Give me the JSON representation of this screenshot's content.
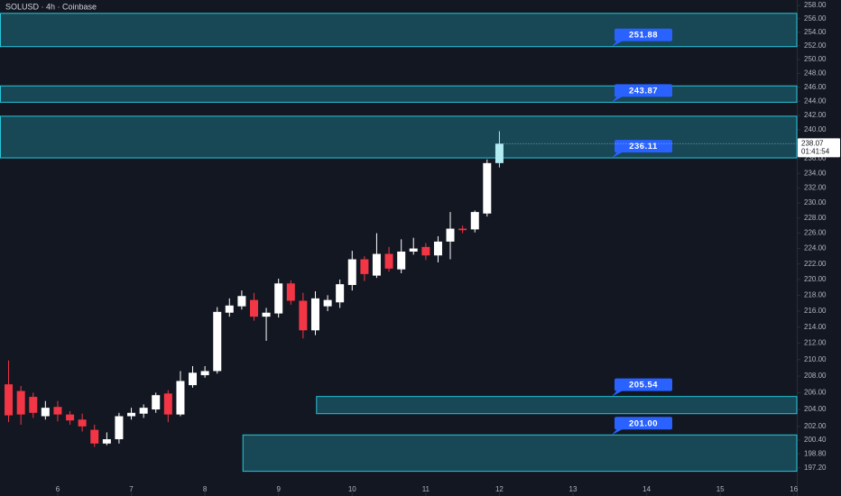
{
  "chart_data": {
    "type": "candlestick",
    "title": "SOLUSD · 4h · Coinbase",
    "log_scale": true,
    "grid": false,
    "up_color": "#ffffff",
    "down_color": "#f23645",
    "last_color": "#b2ebf2",
    "zone_color": "#26c6da",
    "label_color": "#2962ff",
    "xlim": [
      5.216,
      16.04
    ],
    "xticks": [
      6,
      7,
      8,
      9,
      10,
      11,
      12,
      13,
      14,
      15,
      16
    ],
    "ylim": [
      194.4,
      258.8
    ],
    "yticks": [
      {
        "value": 258,
        "label": "258.00"
      },
      {
        "value": 256,
        "label": "256.00"
      },
      {
        "value": 254,
        "label": "254.00"
      },
      {
        "value": 252,
        "label": "252.00"
      },
      {
        "value": 250,
        "label": "250.00"
      },
      {
        "value": 248,
        "label": "248.00"
      },
      {
        "value": 246,
        "label": "246.00"
      },
      {
        "value": 244,
        "label": "244.00"
      },
      {
        "value": 242,
        "label": "242.00"
      },
      {
        "value": 240,
        "label": "240.00"
      },
      {
        "value": 238,
        "label": "238.00"
      },
      {
        "value": 236,
        "label": "236.00"
      },
      {
        "value": 234,
        "label": "234.00"
      },
      {
        "value": 232,
        "label": "232.00"
      },
      {
        "value": 230,
        "label": "230.00"
      },
      {
        "value": 228,
        "label": "228.00"
      },
      {
        "value": 226,
        "label": "226.00"
      },
      {
        "value": 224,
        "label": "224.00"
      },
      {
        "value": 222,
        "label": "222.00"
      },
      {
        "value": 220,
        "label": "220.00"
      },
      {
        "value": 218,
        "label": "218.00"
      },
      {
        "value": 216,
        "label": "216.00"
      },
      {
        "value": 214,
        "label": "214.00"
      },
      {
        "value": 212,
        "label": "212.00"
      },
      {
        "value": 210,
        "label": "210.00"
      },
      {
        "value": 208,
        "label": "208.00"
      },
      {
        "value": 206,
        "label": "206.00"
      },
      {
        "value": 204,
        "label": "204.00"
      },
      {
        "value": 202,
        "label": "202.00"
      },
      {
        "value": 200.4,
        "label": "200.40"
      },
      {
        "value": 198.8,
        "label": "198.80"
      },
      {
        "value": 197.2,
        "label": "197.20"
      }
    ],
    "x": [
      5.333,
      5.5,
      5.667,
      5.833,
      6,
      6.167,
      6.333,
      6.5,
      6.667,
      6.833,
      7,
      7.167,
      7.333,
      7.5,
      7.667,
      7.833,
      8,
      8.167,
      8.333,
      8.5,
      8.667,
      8.833,
      9,
      9.167,
      9.333,
      9.5,
      9.667,
      9.833,
      10,
      10.167,
      10.333,
      10.5,
      10.667,
      10.833,
      11,
      11.167,
      11.333,
      11.5,
      11.667,
      11.833,
      12
    ],
    "open": [
      207,
      206.2,
      205.5,
      203.2,
      204.3,
      203.4,
      202.8,
      201.6,
      200,
      200.5,
      203.2,
      203.5,
      204,
      205.9,
      203.4,
      206.9,
      208.1,
      208.6,
      215.8,
      216.6,
      217.4,
      215.3,
      215.7,
      219.5,
      217.3,
      213.6,
      216.6,
      217.1,
      219.3,
      222.6,
      220.5,
      223.3,
      221.3,
      223.6,
      224.2,
      223.1,
      224.9,
      226.6,
      226.5,
      228.6,
      235.4
    ],
    "high": [
      209.9,
      206.8,
      206,
      205,
      205,
      203.8,
      203.5,
      202.2,
      201.3,
      203.6,
      204.2,
      204.6,
      206,
      206.3,
      208.6,
      209.2,
      209.2,
      216.5,
      217.6,
      218.6,
      218.3,
      216.4,
      220.1,
      219.9,
      218.3,
      218.5,
      218,
      220,
      223.7,
      223,
      226,
      224.2,
      225.2,
      225.4,
      224.7,
      225.6,
      228.8,
      227,
      229,
      235.9,
      239.8
    ],
    "low": [
      202.5,
      202.2,
      203,
      202.8,
      202.6,
      202.2,
      201.4,
      199.6,
      199.8,
      200,
      202.8,
      203,
      203.6,
      202.5,
      203.2,
      206.6,
      207.8,
      208.3,
      215.3,
      216.2,
      214.8,
      212.3,
      215.2,
      216.8,
      212.6,
      213,
      216,
      216.4,
      218.6,
      219.8,
      220.2,
      221,
      220.8,
      223.2,
      222.5,
      222.2,
      222.6,
      226,
      226.1,
      228.2,
      234.8
    ],
    "close": [
      203.3,
      203.4,
      203.6,
      204.2,
      203.4,
      202.7,
      202,
      200,
      200.5,
      203.2,
      203.6,
      204.2,
      205.7,
      203.4,
      207.4,
      208.4,
      208.6,
      215.9,
      216.7,
      217.9,
      215.3,
      215.8,
      219.5,
      217.3,
      213.6,
      217.6,
      217.4,
      219.4,
      222.6,
      220.7,
      223.3,
      221.4,
      223.6,
      224,
      223.1,
      224.9,
      226.6,
      226.4,
      228.8,
      235.4,
      238.07
    ],
    "countdown": "01:41:54",
    "zones": [
      {
        "from": 5.216,
        "low": 251.88,
        "high": 256.8,
        "label": 251.88
      },
      {
        "from": 5.216,
        "low": 243.87,
        "high": 246.2,
        "label": 243.87
      },
      {
        "from": 5.216,
        "low": 236.11,
        "high": 241.9,
        "label": 236.11
      },
      {
        "from": 9.51,
        "low": 203.5,
        "high": 205.54,
        "label": 205.54
      },
      {
        "from": 8.51,
        "low": 196.8,
        "high": 201.0,
        "label": {
          "value": 201.0,
          "label": "201.00"
        }
      }
    ]
  }
}
